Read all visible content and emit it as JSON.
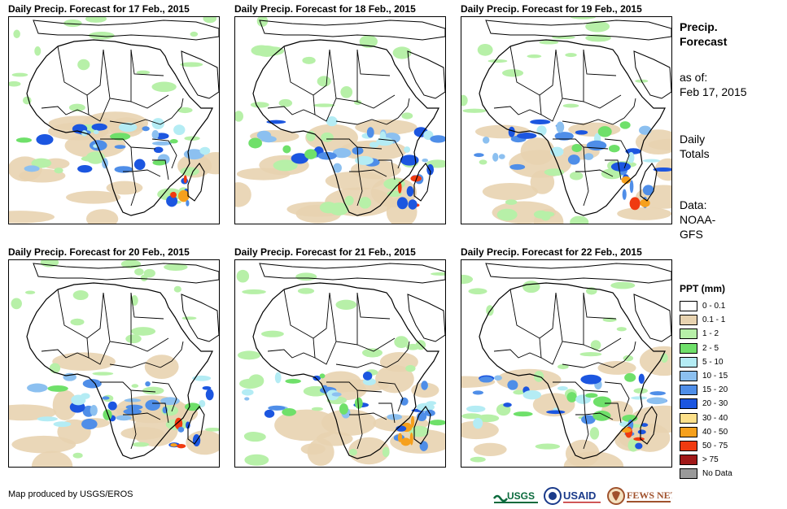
{
  "panels": [
    {
      "title": "Daily Precip. Forecast for 17 Feb., 2015"
    },
    {
      "title": "Daily Precip. Forecast for 18 Feb., 2015"
    },
    {
      "title": "Daily Precip. Forecast for 19 Feb., 2015"
    },
    {
      "title": "Daily Precip. Forecast for 20 Feb., 2015"
    },
    {
      "title": "Daily Precip. Forecast for 21 Feb., 2015"
    },
    {
      "title": "Daily Precip. Forecast for 22 Feb., 2015"
    }
  ],
  "side": {
    "title_line1": "Precip.",
    "title_line2": "Forecast",
    "asof_line1": "as of:",
    "asof_line2": "Feb 17, 2015",
    "daily_line1": "Daily",
    "daily_line2": "Totals",
    "data_line1": "Data:",
    "data_line2": "NOAA-",
    "data_line3": "GFS"
  },
  "legend": {
    "title": "PPT (mm)",
    "items": [
      {
        "label": "0 - 0.1",
        "color": "#ffffff"
      },
      {
        "label": "0.1 - 1",
        "color": "#e8d3b0"
      },
      {
        "label": "1 - 2",
        "color": "#b7f0a8"
      },
      {
        "label": "2 - 5",
        "color": "#6fe06a"
      },
      {
        "label": "5 - 10",
        "color": "#b4ecf4"
      },
      {
        "label": "10 - 15",
        "color": "#8cc0f0"
      },
      {
        "label": "15 - 20",
        "color": "#4f8ee8"
      },
      {
        "label": "20 - 30",
        "color": "#1c56e0"
      },
      {
        "label": "30 - 40",
        "color": "#fce08a"
      },
      {
        "label": "40 - 50",
        "color": "#f6a01c"
      },
      {
        "label": "50 - 75",
        "color": "#f03a10"
      },
      {
        "label": "> 75",
        "color": "#a01818"
      },
      {
        "label": "No Data",
        "color": "#9a9a9a"
      }
    ]
  },
  "footer": {
    "credit": "Map produced by USGS/EROS"
  },
  "logos": {
    "usgs": "USGS",
    "usaid": "USAID",
    "fewsnet": "FEWS NET"
  }
}
